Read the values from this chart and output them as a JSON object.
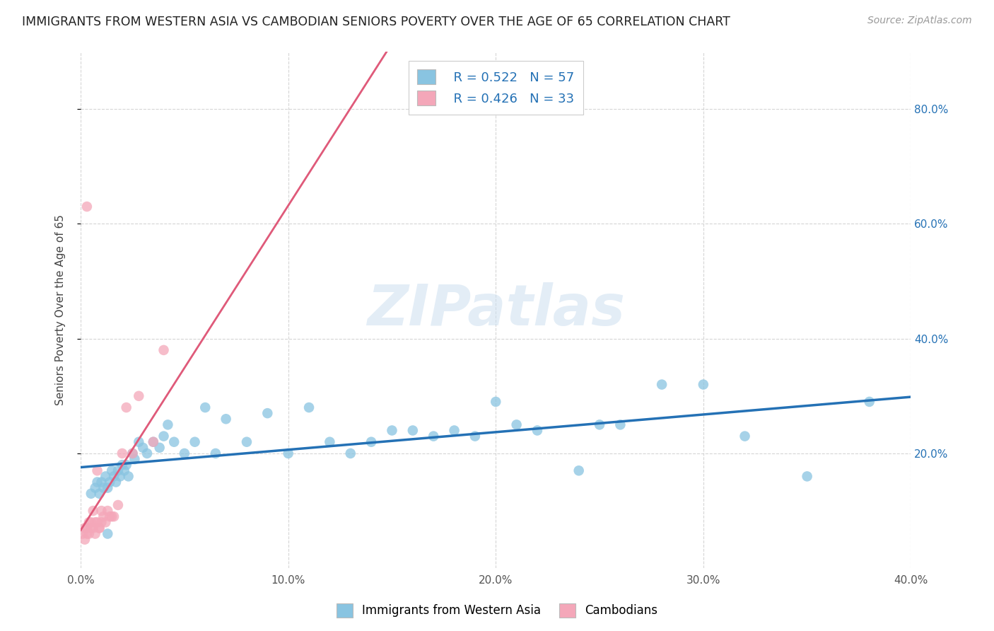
{
  "title": "IMMIGRANTS FROM WESTERN ASIA VS CAMBODIAN SENIORS POVERTY OVER THE AGE OF 65 CORRELATION CHART",
  "source": "Source: ZipAtlas.com",
  "ylabel": "Seniors Poverty Over the Age of 65",
  "xlim": [
    0.0,
    0.4
  ],
  "ylim": [
    0.0,
    0.9
  ],
  "xticks": [
    0.0,
    0.1,
    0.2,
    0.3,
    0.4
  ],
  "yticks": [
    0.2,
    0.4,
    0.6,
    0.8
  ],
  "ytick_right_labels": [
    "20.0%",
    "40.0%",
    "60.0%",
    "80.0%"
  ],
  "blue_color": "#89c4e1",
  "pink_color": "#f4a7b9",
  "blue_line_color": "#2471b5",
  "pink_line_color": "#e05a7a",
  "gray_line_color": "#bbbbbb",
  "legend_label1": "Immigrants from Western Asia",
  "legend_label2": "Cambodians",
  "watermark_zip": "ZIP",
  "watermark_atlas": "atlas",
  "blue_x": [
    0.005,
    0.007,
    0.008,
    0.009,
    0.01,
    0.011,
    0.012,
    0.013,
    0.014,
    0.015,
    0.016,
    0.017,
    0.018,
    0.019,
    0.02,
    0.021,
    0.022,
    0.023,
    0.025,
    0.026,
    0.028,
    0.03,
    0.032,
    0.035,
    0.038,
    0.04,
    0.042,
    0.045,
    0.05,
    0.055,
    0.06,
    0.065,
    0.07,
    0.08,
    0.09,
    0.1,
    0.11,
    0.12,
    0.13,
    0.14,
    0.15,
    0.16,
    0.17,
    0.18,
    0.19,
    0.2,
    0.21,
    0.22,
    0.24,
    0.25,
    0.26,
    0.28,
    0.3,
    0.32,
    0.35,
    0.38,
    0.013
  ],
  "blue_y": [
    0.13,
    0.14,
    0.15,
    0.13,
    0.15,
    0.14,
    0.16,
    0.14,
    0.15,
    0.17,
    0.16,
    0.15,
    0.17,
    0.16,
    0.18,
    0.17,
    0.18,
    0.16,
    0.2,
    0.19,
    0.22,
    0.21,
    0.2,
    0.22,
    0.21,
    0.23,
    0.25,
    0.22,
    0.2,
    0.22,
    0.28,
    0.2,
    0.26,
    0.22,
    0.27,
    0.2,
    0.28,
    0.22,
    0.2,
    0.22,
    0.24,
    0.24,
    0.23,
    0.24,
    0.23,
    0.29,
    0.25,
    0.24,
    0.17,
    0.25,
    0.25,
    0.32,
    0.32,
    0.23,
    0.16,
    0.29,
    0.06
  ],
  "pink_x": [
    0.001,
    0.002,
    0.002,
    0.003,
    0.003,
    0.004,
    0.004,
    0.005,
    0.005,
    0.006,
    0.006,
    0.007,
    0.007,
    0.008,
    0.008,
    0.009,
    0.009,
    0.01,
    0.01,
    0.011,
    0.012,
    0.013,
    0.014,
    0.015,
    0.016,
    0.018,
    0.02,
    0.022,
    0.025,
    0.028,
    0.035,
    0.04,
    0.003
  ],
  "pink_y": [
    0.06,
    0.07,
    0.05,
    0.07,
    0.06,
    0.08,
    0.06,
    0.08,
    0.07,
    0.1,
    0.07,
    0.08,
    0.06,
    0.17,
    0.08,
    0.07,
    0.07,
    0.1,
    0.08,
    0.09,
    0.08,
    0.1,
    0.09,
    0.09,
    0.09,
    0.11,
    0.2,
    0.28,
    0.2,
    0.3,
    0.22,
    0.38,
    0.63
  ]
}
